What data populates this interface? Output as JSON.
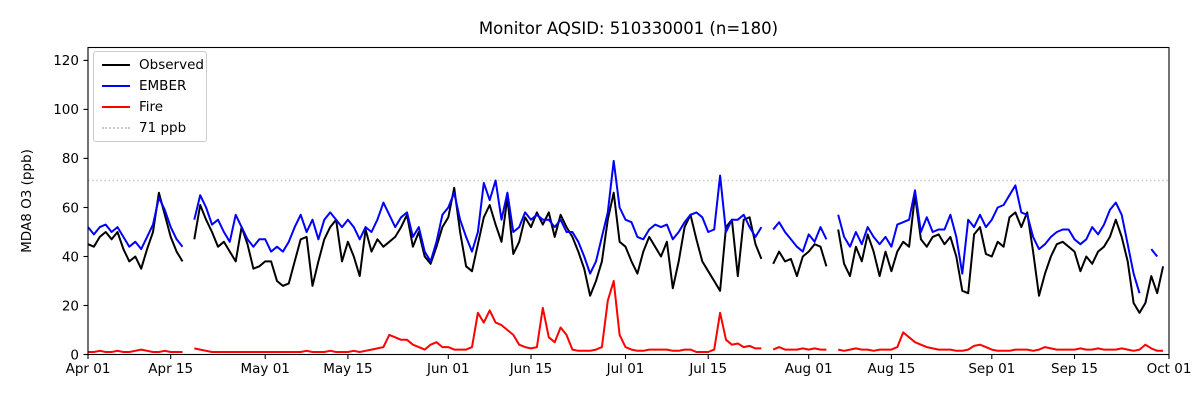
{
  "figure": {
    "title": "Monitor AQSID: 510330001 (n=180)",
    "background": "#ffffff"
  },
  "axes": {
    "y": {
      "label": "MDA8 O3 (ppb)",
      "ticks": [
        0,
        20,
        40,
        60,
        80,
        100,
        120
      ],
      "lim": [
        0,
        125
      ]
    },
    "x": {
      "tick_labels": [
        "Apr 01",
        "Apr 15",
        "May 01",
        "May 15",
        "Jun 01",
        "Jun 15",
        "Jul 01",
        "Jul 15",
        "Aug 01",
        "Aug 15",
        "Sep 01",
        "Sep 15",
        "Oct 01"
      ],
      "tick_days": [
        0,
        14,
        30,
        44,
        61,
        75,
        91,
        105,
        122,
        136,
        153,
        167,
        183
      ],
      "range_days": 183
    }
  },
  "legend": {
    "position": "upper-left",
    "items": [
      {
        "label": "Observed",
        "color": "#000000",
        "line_style": "solid"
      },
      {
        "label": "EMBER",
        "color": "#0000ff",
        "line_style": "solid"
      },
      {
        "label": "Fire",
        "color": "#ff0000",
        "line_style": "solid"
      },
      {
        "label": "71 ppb",
        "color": "#c9c9c9",
        "line_style": "dotted"
      }
    ]
  },
  "chart_data": {
    "type": "line",
    "title": "Monitor AQSID: 510330001 (n=180)",
    "xlabel": "",
    "ylabel": "MDA8 O3 (ppb)",
    "x_start_label": "Apr 01",
    "x_end_label": "Oct 01",
    "x_unit": "daily values, day index 0 = Apr 01",
    "ylim": [
      0,
      125
    ],
    "n_observations": 180,
    "reference_line": {
      "value": 71,
      "label": "71 ppb",
      "color": "#c9c9c9",
      "style": "dotted"
    },
    "series": [
      {
        "name": "Observed",
        "color": "#000000",
        "values": [
          45,
          44,
          48,
          50,
          47,
          50,
          43,
          38,
          40,
          35,
          43,
          50,
          66,
          57,
          48,
          42,
          38,
          null,
          47,
          61,
          55,
          50,
          44,
          46,
          42,
          38,
          52,
          45,
          35,
          36,
          38,
          38,
          30,
          28,
          29,
          38,
          47,
          48,
          28,
          38,
          47,
          52,
          55,
          38,
          46,
          40,
          32,
          51,
          42,
          47,
          44,
          46,
          48,
          52,
          57,
          44,
          50,
          40,
          37,
          44,
          52,
          56,
          68,
          50,
          36,
          34,
          45,
          56,
          61,
          53,
          46,
          64,
          41,
          46,
          56,
          52,
          58,
          53,
          58,
          48,
          57,
          52,
          48,
          42,
          35,
          24,
          30,
          38,
          55,
          66,
          46,
          44,
          38,
          33,
          42,
          48,
          44,
          40,
          46,
          27,
          38,
          52,
          57,
          47,
          38,
          34,
          30,
          26,
          52,
          55,
          32,
          55,
          56,
          45,
          39,
          null,
          37,
          42,
          38,
          39,
          32,
          40,
          42,
          45,
          44,
          36,
          null,
          51,
          37,
          32,
          44,
          38,
          49,
          42,
          32,
          42,
          34,
          42,
          46,
          44,
          65,
          47,
          44,
          48,
          49,
          45,
          48,
          40,
          26,
          25,
          49,
          52,
          41,
          40,
          46,
          44,
          56,
          58,
          52,
          58,
          42,
          24,
          33,
          40,
          45,
          46,
          44,
          42,
          34,
          40,
          37,
          42,
          44,
          48,
          55,
          48,
          38,
          21,
          17,
          21,
          32,
          25,
          36
        ]
      },
      {
        "name": "EMBER",
        "color": "#0000ff",
        "values": [
          52,
          49,
          52,
          53,
          50,
          52,
          48,
          44,
          46,
          43,
          48,
          53,
          64,
          59,
          52,
          47,
          44,
          null,
          55,
          65,
          60,
          53,
          55,
          50,
          46,
          57,
          52,
          47,
          44,
          47,
          47,
          42,
          44,
          42,
          46,
          52,
          57,
          50,
          55,
          47,
          55,
          58,
          55,
          52,
          55,
          52,
          47,
          52,
          50,
          55,
          62,
          57,
          52,
          56,
          58,
          48,
          52,
          42,
          38,
          46,
          57,
          60,
          66,
          55,
          48,
          42,
          50,
          70,
          63,
          71,
          55,
          66,
          50,
          52,
          58,
          55,
          57,
          55,
          55,
          52,
          55,
          50,
          50,
          46,
          40,
          33,
          38,
          48,
          58,
          79,
          60,
          55,
          54,
          48,
          47,
          51,
          53,
          52,
          53,
          47,
          50,
          54,
          57,
          58,
          56,
          50,
          51,
          73,
          50,
          55,
          55,
          57,
          52,
          48,
          52,
          null,
          51,
          54,
          50,
          47,
          44,
          42,
          49,
          46,
          52,
          47,
          null,
          57,
          48,
          44,
          50,
          45,
          52,
          48,
          45,
          48,
          44,
          53,
          54,
          55,
          67,
          50,
          56,
          50,
          51,
          51,
          57,
          48,
          33,
          55,
          52,
          57,
          52,
          55,
          60,
          61,
          65,
          69,
          58,
          57,
          48,
          43,
          45,
          48,
          50,
          51,
          51,
          47,
          45,
          47,
          52,
          49,
          53,
          59,
          62,
          57,
          45,
          33,
          25,
          null,
          43,
          40,
          null
        ]
      },
      {
        "name": "Fire",
        "color": "#ff0000",
        "values": [
          1,
          1,
          1.5,
          1,
          1,
          1.5,
          1,
          1,
          1.5,
          2,
          1.5,
          1,
          1,
          1.5,
          1,
          1,
          1,
          null,
          2.5,
          2,
          1.5,
          1,
          1,
          1,
          1,
          1,
          1,
          1,
          1,
          1,
          1,
          1,
          1,
          1,
          1,
          1,
          1,
          1.5,
          1,
          1,
          1,
          1.5,
          1,
          1,
          1,
          1.5,
          1,
          1.5,
          2,
          2.5,
          3,
          8,
          7,
          6,
          6,
          4,
          3,
          2,
          4,
          5,
          3,
          3,
          2,
          2,
          2,
          3,
          17,
          13,
          18,
          13,
          12,
          10,
          8,
          4,
          3,
          2.5,
          3,
          19,
          7,
          5,
          11,
          8,
          2,
          1.5,
          1.5,
          1.5,
          2,
          3,
          22,
          30,
          8,
          3,
          2,
          1.5,
          1.5,
          2,
          2,
          2,
          2,
          1.5,
          1.5,
          2,
          2,
          1,
          1,
          1,
          2,
          17,
          6,
          4,
          4.5,
          3,
          3.5,
          2.5,
          2.5,
          null,
          2,
          3,
          2,
          2,
          2,
          2.5,
          2,
          2.5,
          2,
          2,
          null,
          2,
          1.5,
          2,
          2.5,
          2,
          2,
          1.5,
          2,
          2,
          2,
          3,
          9,
          7,
          5,
          4,
          3,
          2.5,
          2,
          2,
          2,
          1.5,
          1.5,
          2,
          3.5,
          4,
          3,
          2,
          1.5,
          1.5,
          1.5,
          2,
          2,
          2,
          1.5,
          2,
          3,
          2.5,
          2,
          2,
          2,
          2,
          2.5,
          2,
          2,
          2.5,
          2,
          2,
          2,
          2.5,
          2,
          1.5,
          2,
          4,
          2.5,
          1.5,
          1.5
        ]
      }
    ]
  }
}
